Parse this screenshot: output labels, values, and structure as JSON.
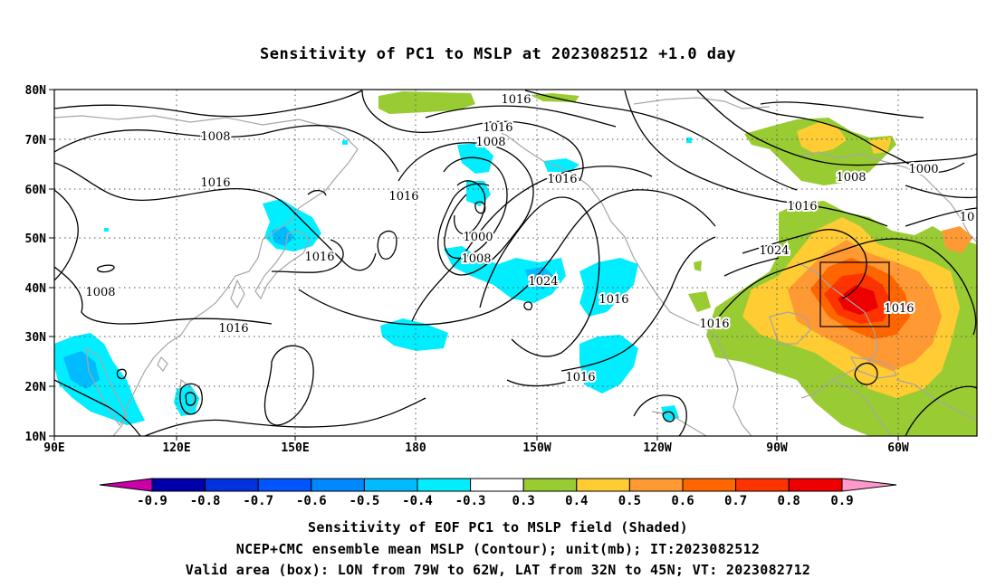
{
  "title": "Sensitivity of PC1 to MSLP at 2023082512 +1.0 day",
  "lat_labels": [
    "80N",
    "70N",
    "60N",
    "50N",
    "40N",
    "30N",
    "20N",
    "10N"
  ],
  "lon_labels": [
    "90E",
    "120E",
    "150E",
    "180",
    "150W",
    "120W",
    "90W",
    "60W"
  ],
  "contour_labels": [
    {
      "text": "1016"
    },
    {
      "text": "1016"
    },
    {
      "text": "1008"
    },
    {
      "text": "1008"
    },
    {
      "text": "1016"
    },
    {
      "text": "1016"
    },
    {
      "text": "1016"
    },
    {
      "text": "1008"
    },
    {
      "text": "1000"
    },
    {
      "text": "1016"
    },
    {
      "text": "1000"
    },
    {
      "text": "1008"
    },
    {
      "text": "1016"
    },
    {
      "text": "1024"
    },
    {
      "text": "1016"
    },
    {
      "text": "1008"
    },
    {
      "text": "1024"
    },
    {
      "text": "1016"
    },
    {
      "text": "1016"
    },
    {
      "text": "1016"
    },
    {
      "text": "1016"
    },
    {
      "text": "10"
    }
  ],
  "colorbar": {
    "labels": [
      "-0.9",
      "-0.8",
      "-0.7",
      "-0.6",
      "-0.5",
      "-0.4",
      "-0.3",
      "0.3",
      "0.4",
      "0.5",
      "0.6",
      "0.7",
      "0.8",
      "0.9"
    ],
    "colors": [
      "#cc00aa",
      "#0000aa",
      "#0033dd",
      "#0055ff",
      "#0088ff",
      "#00bbff",
      "#00eeff",
      "#ffffff",
      "#99cc33",
      "#ffcc33",
      "#ff9933",
      "#ff6600",
      "#ff3300",
      "#ee0000",
      "#ff99cc"
    ]
  },
  "footer": {
    "line1": "Sensitivity of EOF PC1 to MSLP field (Shaded)",
    "line2": "NCEP+CMC ensemble mean MSLP (Contour); unit(mb); IT:2023082512",
    "line3": "Valid area (box): LON from 79W to 62W, LAT from 32N to 45N; VT: 2023082712"
  }
}
